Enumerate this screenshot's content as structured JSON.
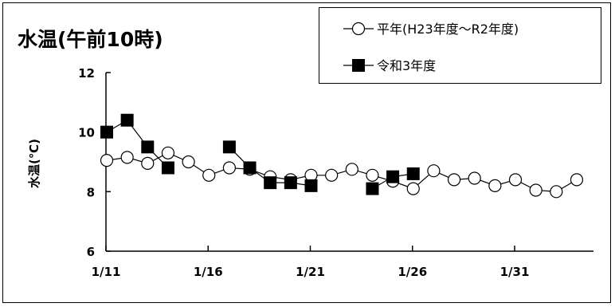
{
  "chart_data": {
    "type": "line",
    "title": "水温(午前10時)",
    "ylabel": "水温(℃)",
    "xlabel": "",
    "ylim": [
      6,
      12
    ],
    "yticks": [
      6,
      8,
      10,
      12
    ],
    "x_tick_labels": [
      "1/11",
      "1/16",
      "1/21",
      "1/26",
      "1/31"
    ],
    "x_tick_days": [
      11,
      16,
      21,
      26,
      31
    ],
    "xlim": [
      11,
      35
    ],
    "grid": false,
    "legend_position": "top-right",
    "series": [
      {
        "name": "平年(H23年度〜R2年度)",
        "marker": "open-circle",
        "days": [
          11,
          12,
          13,
          14,
          15,
          16,
          17,
          18,
          19,
          20,
          21,
          22,
          23,
          24,
          25,
          26,
          27,
          28,
          29,
          30,
          31,
          32,
          33,
          34
        ],
        "values": [
          9.05,
          9.15,
          8.95,
          9.3,
          9.0,
          8.55,
          8.8,
          8.75,
          8.5,
          8.4,
          8.55,
          8.55,
          8.75,
          8.55,
          8.35,
          8.1,
          8.7,
          8.4,
          8.45,
          8.2,
          8.4,
          8.05,
          8.0,
          8.4
        ]
      },
      {
        "name": "令和3年度",
        "marker": "filled-square",
        "segments": [
          {
            "days": [
              11,
              12,
              13,
              14
            ],
            "values": [
              10.0,
              10.4,
              9.5,
              8.8
            ]
          },
          {
            "days": [
              17,
              18,
              19,
              20,
              21
            ],
            "values": [
              9.5,
              8.8,
              8.3,
              8.3,
              8.2
            ]
          },
          {
            "days": [
              24,
              25,
              26
            ],
            "values": [
              8.1,
              8.5,
              8.6
            ]
          }
        ]
      }
    ]
  }
}
